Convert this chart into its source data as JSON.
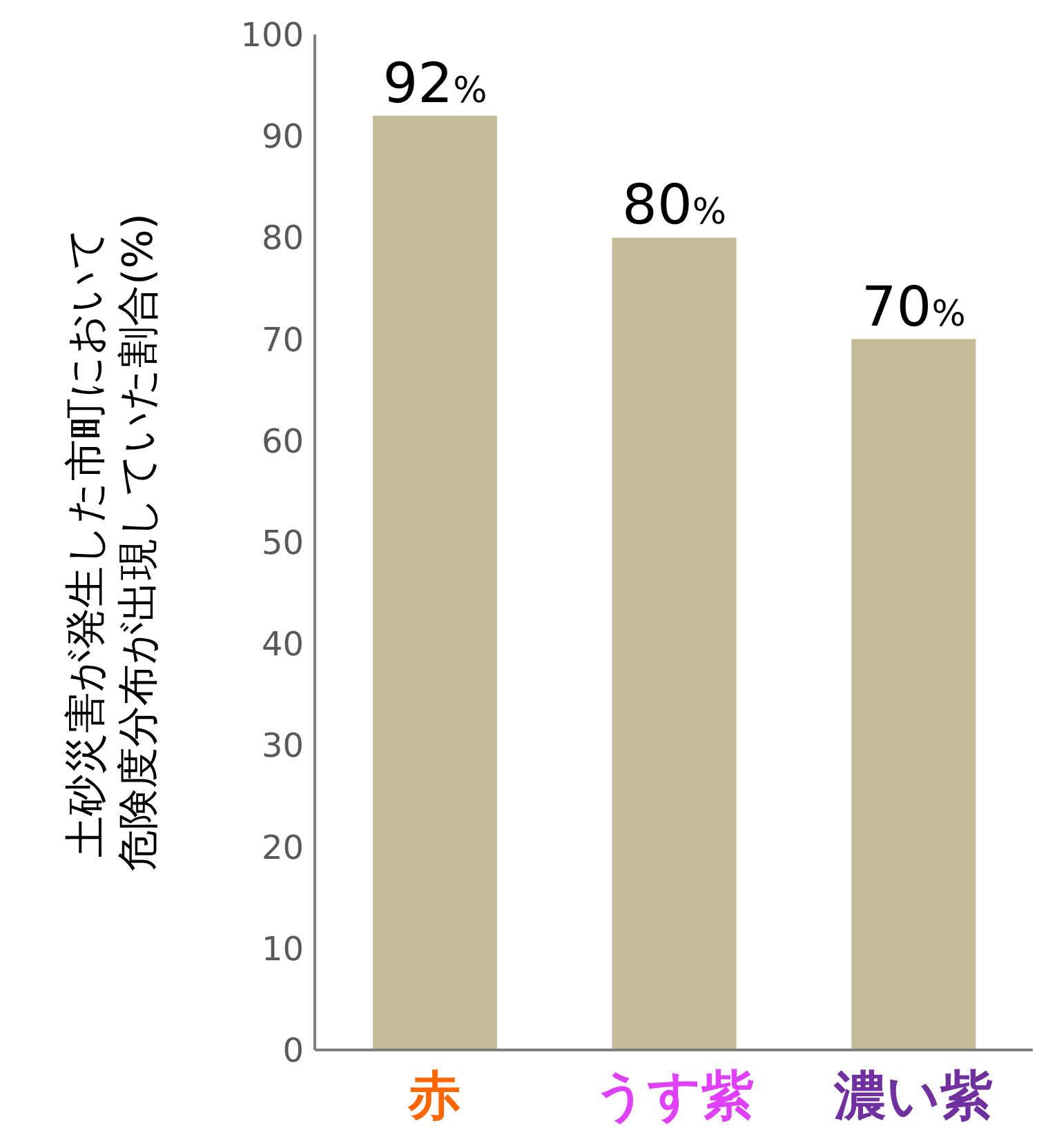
{
  "chart_data": {
    "type": "bar",
    "ylabel": "土砂災害が発生した市町において危険度分布が出現していた割合(%)",
    "categories": [
      "赤",
      "うす紫",
      "濃い紫"
    ],
    "values": [
      92,
      80,
      70
    ],
    "color": "#c4bc96",
    "ylim": [
      0,
      100
    ],
    "yticks": [
      0,
      10,
      20,
      30,
      40,
      50,
      60,
      70,
      80,
      90,
      100
    ],
    "value_labels": [
      "92%",
      "80%",
      "70%"
    ]
  }
}
